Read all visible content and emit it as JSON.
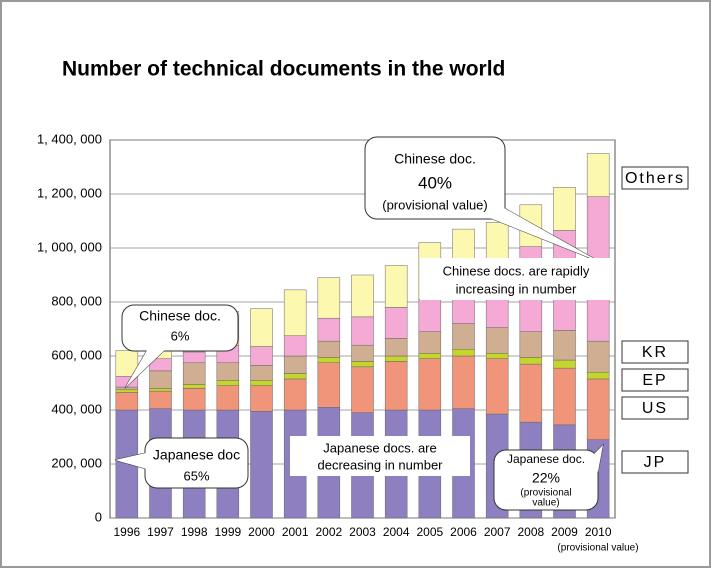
{
  "chart_data": {
    "type": "stacked_bar",
    "title": "Number of technical documents in the world",
    "categories": [
      "1996",
      "1997",
      "1998",
      "1999",
      "2000",
      "2001",
      "2002",
      "2003",
      "2004",
      "2005",
      "2006",
      "2007",
      "2008",
      "2009",
      "2010"
    ],
    "category_note": "(provisional value)",
    "series": [
      {
        "name": "JP",
        "color": "#8d7fc0",
        "values": [
          400000,
          405000,
          400000,
          400000,
          395000,
          400000,
          410000,
          390000,
          400000,
          400000,
          405000,
          385000,
          355000,
          345000,
          290000
        ]
      },
      {
        "name": "US",
        "color": "#f0957a",
        "values": [
          65000,
          65000,
          80000,
          90000,
          95000,
          115000,
          165000,
          170000,
          180000,
          190000,
          195000,
          205000,
          215000,
          210000,
          225000
        ]
      },
      {
        "name": "EP",
        "color": "#c4d62e",
        "values": [
          10000,
          10000,
          15000,
          20000,
          20000,
          20000,
          20000,
          20000,
          20000,
          20000,
          25000,
          20000,
          25000,
          30000,
          25000
        ]
      },
      {
        "name": "KR",
        "color": "#cfae92",
        "values": [
          10000,
          65000,
          80000,
          65000,
          55000,
          65000,
          60000,
          60000,
          65000,
          80000,
          95000,
          95000,
          95000,
          110000,
          115000
        ]
      },
      {
        "color": "#f4aad5",
        "values": [
          40000,
          45000,
          40000,
          65000,
          70000,
          75000,
          85000,
          105000,
          115000,
          120000,
          145000,
          245000,
          315000,
          370000,
          535000
        ]
      },
      {
        "name": "Others",
        "color": "#fdf8b0",
        "values": [
          95000,
          60000,
          85000,
          125000,
          140000,
          170000,
          150000,
          155000,
          155000,
          210000,
          205000,
          145000,
          155000,
          160000,
          160000
        ]
      }
    ],
    "ylim": [
      0,
      1400000
    ],
    "yticks": [
      {
        "value": 0,
        "label": "0"
      },
      {
        "value": 200000,
        "label": "200, 000"
      },
      {
        "value": 400000,
        "label": "400, 000"
      },
      {
        "value": 600000,
        "label": "600, 000"
      },
      {
        "value": 800000,
        "label": "800, 000"
      },
      {
        "value": 1000000,
        "label": "1, 000, 000"
      },
      {
        "value": 1200000,
        "label": "1, 200, 000"
      },
      {
        "value": 1400000,
        "label": "1, 400, 000"
      }
    ],
    "grid": true,
    "annotations": [
      {
        "lines": [
          "Chinese doc.",
          "40%",
          "(provisional value)"
        ]
      },
      {
        "lines": [
          "Chinese doc.",
          "6%"
        ]
      },
      {
        "lines": [
          "Japanese doc",
          "65%"
        ]
      },
      {
        "lines": [
          "Japanese doc.",
          "22%",
          "(provisional",
          "value)"
        ]
      },
      {
        "lines": [
          "Chinese docs. are rapidly",
          "increasing in number"
        ]
      },
      {
        "lines": [
          "Japanese docs. are",
          "decreasing in number"
        ]
      }
    ]
  }
}
